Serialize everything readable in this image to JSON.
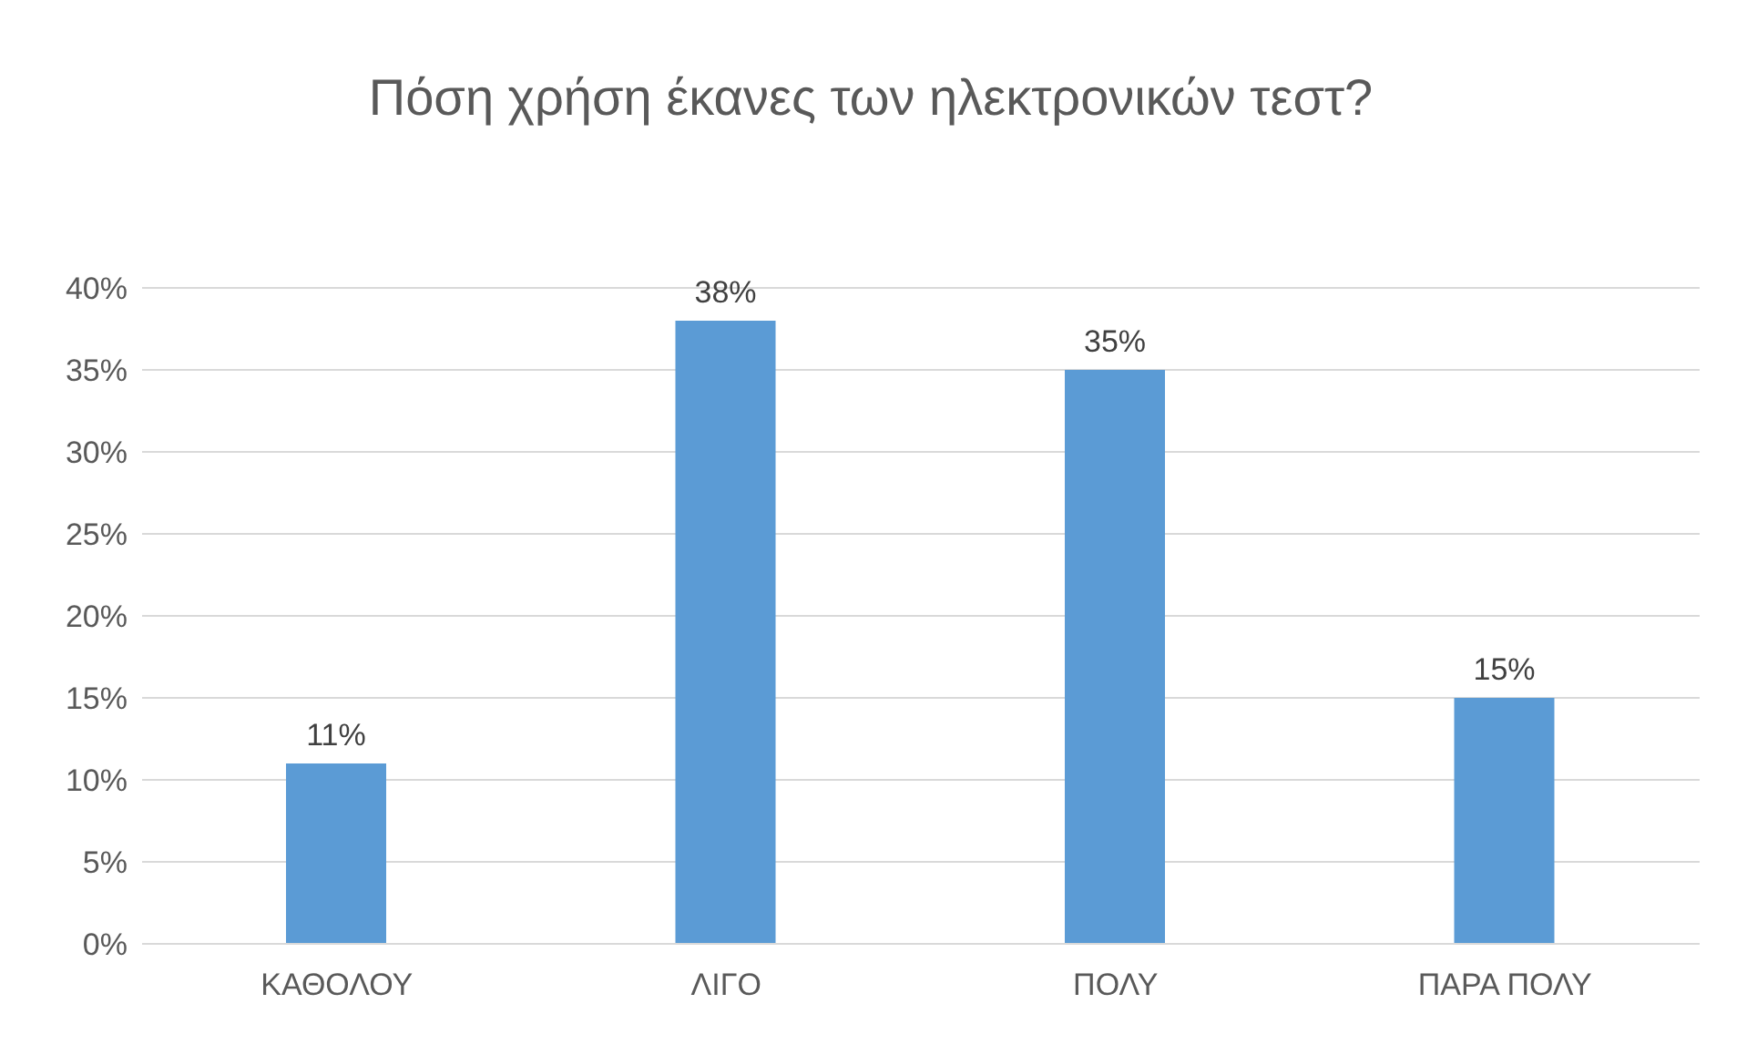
{
  "chart_data": {
    "type": "bar",
    "title": "Πόση χρήση έκανες των ηλεκτρονικών τεστ?",
    "categories": [
      "ΚΑΘΟΛΟΥ",
      "ΛΙΓΟ",
      "ΠΟΛΥ",
      "ΠΑΡΑ ΠΟΛΥ"
    ],
    "values": [
      11,
      38,
      35,
      15
    ],
    "value_labels": [
      "11%",
      "38%",
      "35%",
      "15%"
    ],
    "color": "#5b9bd5",
    "ylim": [
      0,
      40
    ],
    "yticks": [
      {
        "value": 0,
        "label": "0%"
      },
      {
        "value": 5,
        "label": "5%"
      },
      {
        "value": 10,
        "label": "10%"
      },
      {
        "value": 15,
        "label": "15%"
      },
      {
        "value": 20,
        "label": "20%"
      },
      {
        "value": 25,
        "label": "25%"
      },
      {
        "value": 30,
        "label": "30%"
      },
      {
        "value": 35,
        "label": "35%"
      },
      {
        "value": 40,
        "label": "40%"
      }
    ],
    "grid": "y"
  }
}
